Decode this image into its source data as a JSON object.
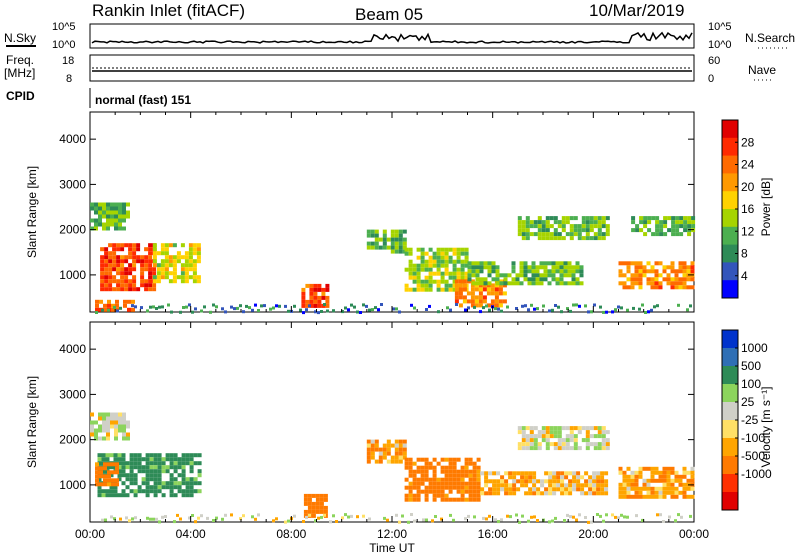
{
  "header": {
    "station": "Rankin Inlet (fitACF)",
    "beam": "Beam 05",
    "date": "10/Mar/2019"
  },
  "noise_panel": {
    "left_label": "N.Sky",
    "right_label": "N.Search",
    "left_ticks": [
      "10^5",
      "10^0"
    ],
    "right_ticks": [
      "10^5",
      "10^0"
    ]
  },
  "freq_panel": {
    "left_label_1": "Freq.",
    "left_label_2": "[MHz]",
    "right_label": "Nave",
    "left_ticks": [
      "18",
      "8"
    ],
    "right_ticks": [
      "60",
      "0"
    ]
  },
  "cpid_panel": {
    "label": "CPID",
    "mode": "normal (fast) 151"
  },
  "colors": {
    "power": [
      "#0000ff",
      "#3355bb",
      "#2e8b57",
      "#4caf50",
      "#a6d400",
      "#ffd200",
      "#ff9900",
      "#ff6a00",
      "#ff2a00",
      "#e00000"
    ],
    "velocity": [
      "#e00000",
      "#ff3000",
      "#ff7a00",
      "#ffa500",
      "#ffe066",
      "#d0d0c8",
      "#8cd45c",
      "#2e8b57",
      "#2f6fb5",
      "#0033cc"
    ]
  },
  "chart_data": [
    {
      "type": "heatmap",
      "quantity": "Power",
      "ylabel": "Slant Range [km]",
      "colorbar_label": "Power [dB]",
      "colorbar_ticks": [
        "28",
        "24",
        "20",
        "16",
        "12",
        "8",
        "4"
      ],
      "colorbar_range": [
        0,
        32
      ],
      "ylim": [
        180,
        4600
      ],
      "y_ticks": [
        1000,
        2000,
        3000,
        4000
      ],
      "x_ticks": [
        "00:00",
        "04:00",
        "08:00",
        "12:00",
        "16:00",
        "20:00",
        "00:00"
      ],
      "blobs": [
        {
          "t0": 0.4,
          "t1": 2.5,
          "r0": 700,
          "r1": 1700,
          "value": 26
        },
        {
          "t0": 2.5,
          "t1": 4.3,
          "r0": 900,
          "r1": 1700,
          "value": 16
        },
        {
          "t0": 0.0,
          "t1": 1.5,
          "r0": 2000,
          "r1": 2600,
          "value": 12
        },
        {
          "t0": 0.2,
          "t1": 1.7,
          "r0": 250,
          "r1": 450,
          "value": 24
        },
        {
          "t0": 8.4,
          "t1": 9.4,
          "r0": 300,
          "r1": 800,
          "value": 26
        },
        {
          "t0": 11.0,
          "t1": 12.5,
          "r0": 1500,
          "r1": 2000,
          "value": 12
        },
        {
          "t0": 12.5,
          "t1": 15.0,
          "r0": 700,
          "r1": 1600,
          "value": 14
        },
        {
          "t0": 14.5,
          "t1": 16.5,
          "r0": 300,
          "r1": 900,
          "value": 22
        },
        {
          "t0": 15.0,
          "t1": 19.5,
          "r0": 800,
          "r1": 1300,
          "value": 12
        },
        {
          "t0": 17.0,
          "t1": 20.5,
          "r0": 1800,
          "r1": 2300,
          "value": 12
        },
        {
          "t0": 21.0,
          "t1": 24.0,
          "r0": 700,
          "r1": 1300,
          "value": 22
        },
        {
          "t0": 21.5,
          "t1": 24.0,
          "r0": 1900,
          "r1": 2300,
          "value": 12
        }
      ]
    },
    {
      "type": "heatmap",
      "quantity": "Velocity",
      "ylabel": "Slant Range [km]",
      "colorbar_label": "Velocity [m s⁻¹]",
      "colorbar_ticks": [
        "1000",
        "500",
        "100",
        "25",
        "-25",
        "-100",
        "-500",
        "-1000"
      ],
      "ylim": [
        180,
        4600
      ],
      "y_ticks": [
        1000,
        2000,
        3000,
        4000
      ],
      "x_ticks": [
        "00:00",
        "04:00",
        "08:00",
        "12:00",
        "16:00",
        "20:00",
        "00:00"
      ],
      "xlabel": "Time UT",
      "blobs": [
        {
          "t0": 0.3,
          "t1": 4.3,
          "r0": 800,
          "r1": 1700,
          "value": 150
        },
        {
          "t0": 0.0,
          "t1": 1.5,
          "r0": 2000,
          "r1": 2600,
          "value": 0
        },
        {
          "t0": 0.2,
          "t1": 1.0,
          "r0": 1000,
          "r1": 1500,
          "value": -150
        },
        {
          "t0": 8.5,
          "t1": 9.4,
          "r0": 300,
          "r1": 800,
          "value": -300
        },
        {
          "t0": 11.0,
          "t1": 12.5,
          "r0": 1500,
          "r1": 2000,
          "value": -80
        },
        {
          "t0": 12.5,
          "t1": 15.5,
          "r0": 700,
          "r1": 1600,
          "value": -150
        },
        {
          "t0": 15.5,
          "t1": 20.5,
          "r0": 800,
          "r1": 1300,
          "value": -60
        },
        {
          "t0": 17.0,
          "t1": 20.5,
          "r0": 1800,
          "r1": 2300,
          "value": 0
        },
        {
          "t0": 21.0,
          "t1": 24.0,
          "r0": 700,
          "r1": 1400,
          "value": -80
        }
      ]
    }
  ]
}
